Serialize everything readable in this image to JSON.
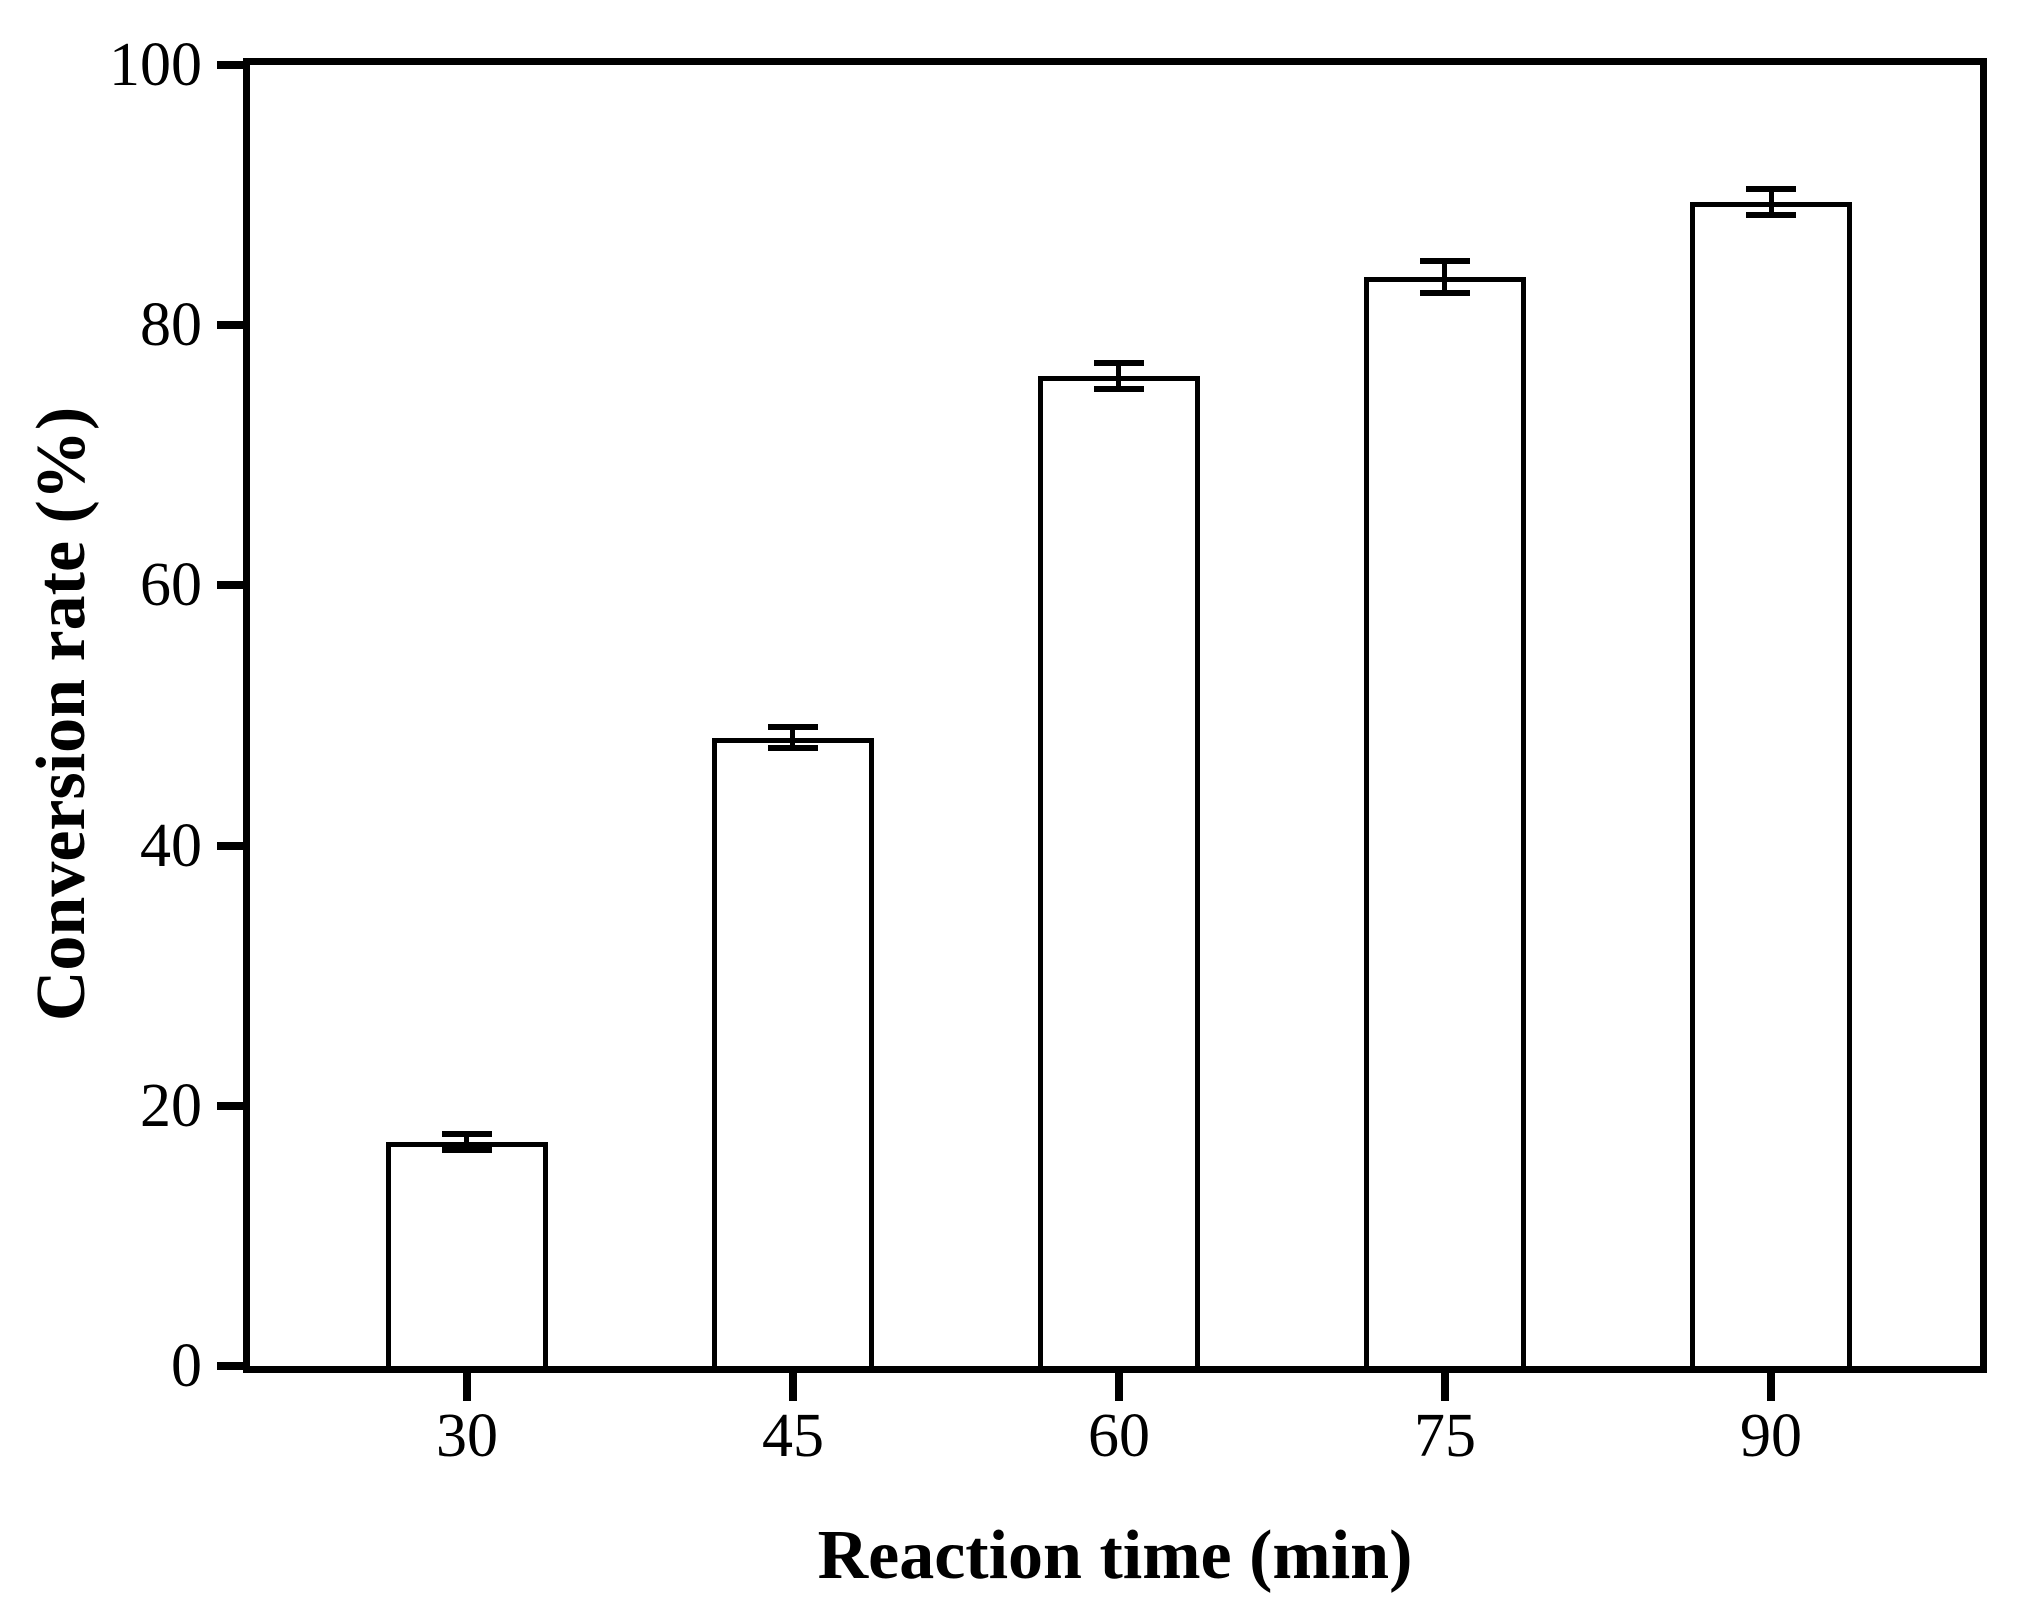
{
  "chart_data": {
    "type": "bar",
    "title": "",
    "xlabel": "Reaction time (min)",
    "ylabel": "Conversion rate (%)",
    "categories": [
      "30",
      "45",
      "60",
      "75",
      "90"
    ],
    "values": [
      17.2,
      48.3,
      76.1,
      83.7,
      89.5
    ],
    "errors": [
      0.6,
      0.8,
      1.0,
      1.2,
      1.0
    ],
    "ylim": [
      0,
      100
    ],
    "yticks": [
      0,
      20,
      40,
      60,
      80,
      100
    ],
    "grid": false,
    "legend": "none",
    "error_bars": true,
    "bar_fill_color": "#ffffff",
    "line_color": "#000000",
    "background_color": "#ffffff"
  }
}
